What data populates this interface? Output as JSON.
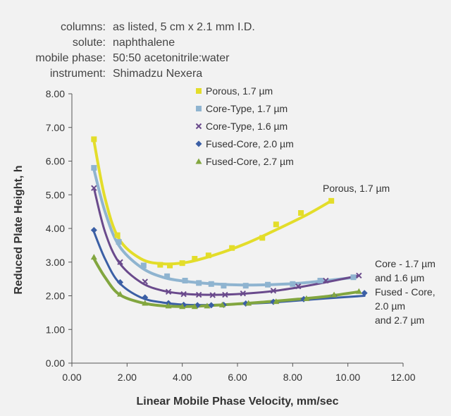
{
  "info": [
    {
      "label": "columns:",
      "value": "as listed, 5 cm x 2.1 mm I.D."
    },
    {
      "label": "solute:",
      "value": "naphthalene"
    },
    {
      "label": "mobile phase:",
      "value": "50:50 acetonitrile:water"
    },
    {
      "label": "instrument:",
      "value": "Shimadzu Nexera"
    }
  ],
  "chart_data": {
    "type": "scatter",
    "xlabel": "Linear Mobile Phase Velocity, mm/sec",
    "ylabel": "Reduced Plate Height, h",
    "xlim": [
      0,
      12
    ],
    "ylim": [
      0,
      8
    ],
    "xticks": [
      "0.00",
      "2.00",
      "4.00",
      "6.00",
      "8.00",
      "10.00",
      "12.00"
    ],
    "yticks": [
      "0.00",
      "1.00",
      "2.00",
      "3.00",
      "4.00",
      "5.00",
      "6.00",
      "7.00",
      "8.00"
    ],
    "grid": false,
    "legend_position": "top-right",
    "series": [
      {
        "name": "Porous, 1.7 µm",
        "color": "#e3dd2a",
        "marker": "square",
        "points": [
          [
            0.8,
            6.65
          ],
          [
            1.65,
            3.8
          ],
          [
            3.2,
            2.92
          ],
          [
            3.55,
            2.9
          ],
          [
            4.0,
            2.97
          ],
          [
            4.45,
            3.1
          ],
          [
            4.95,
            3.2
          ],
          [
            5.8,
            3.42
          ],
          [
            6.9,
            3.72
          ],
          [
            8.3,
            4.46
          ],
          [
            7.4,
            4.12
          ],
          [
            9.4,
            4.82
          ]
        ],
        "curve": [
          [
            0.8,
            6.6
          ],
          [
            1.2,
            4.9
          ],
          [
            1.7,
            3.7
          ],
          [
            2.5,
            3.1
          ],
          [
            3.3,
            2.95
          ],
          [
            4.2,
            3.0
          ],
          [
            5.2,
            3.22
          ],
          [
            6.3,
            3.55
          ],
          [
            7.5,
            4.0
          ],
          [
            8.5,
            4.4
          ],
          [
            9.4,
            4.82
          ]
        ]
      },
      {
        "name": "Core-Type, 1.7 µm",
        "color": "#8fb4d0",
        "marker": "square",
        "points": [
          [
            0.8,
            5.8
          ],
          [
            1.7,
            3.6
          ],
          [
            2.6,
            2.9
          ],
          [
            3.45,
            2.58
          ],
          [
            4.1,
            2.45
          ],
          [
            4.6,
            2.38
          ],
          [
            5.05,
            2.35
          ],
          [
            5.5,
            2.3
          ],
          [
            6.3,
            2.3
          ],
          [
            7.1,
            2.33
          ],
          [
            8.0,
            2.35
          ],
          [
            9.0,
            2.45
          ],
          [
            10.2,
            2.55
          ]
        ],
        "curve": [
          [
            0.8,
            5.75
          ],
          [
            1.2,
            4.5
          ],
          [
            1.7,
            3.5
          ],
          [
            2.5,
            2.85
          ],
          [
            3.3,
            2.55
          ],
          [
            4.2,
            2.42
          ],
          [
            5.2,
            2.35
          ],
          [
            6.2,
            2.32
          ],
          [
            7.2,
            2.33
          ],
          [
            8.2,
            2.37
          ],
          [
            9.2,
            2.45
          ],
          [
            10.3,
            2.55
          ]
        ]
      },
      {
        "name": "Core-Type, 1.6 µm",
        "color": "#6a4a8c",
        "marker": "x",
        "points": [
          [
            0.8,
            5.2
          ],
          [
            1.75,
            3.0
          ],
          [
            2.65,
            2.42
          ],
          [
            3.5,
            2.12
          ],
          [
            4.05,
            2.05
          ],
          [
            4.6,
            2.03
          ],
          [
            5.1,
            2.02
          ],
          [
            5.55,
            2.03
          ],
          [
            6.2,
            2.07
          ],
          [
            7.3,
            2.15
          ],
          [
            8.2,
            2.28
          ],
          [
            9.2,
            2.45
          ],
          [
            10.4,
            2.6
          ]
        ],
        "curve": [
          [
            0.8,
            5.2
          ],
          [
            1.2,
            3.9
          ],
          [
            1.7,
            3.0
          ],
          [
            2.5,
            2.4
          ],
          [
            3.3,
            2.15
          ],
          [
            4.2,
            2.05
          ],
          [
            5.2,
            2.03
          ],
          [
            6.2,
            2.06
          ],
          [
            7.2,
            2.13
          ],
          [
            8.2,
            2.25
          ],
          [
            9.2,
            2.4
          ],
          [
            10.4,
            2.6
          ]
        ]
      },
      {
        "name": "Fused-Core, 2.0 µm",
        "color": "#3b5fa5",
        "marker": "diamond",
        "points": [
          [
            0.8,
            3.95
          ],
          [
            1.75,
            2.4
          ],
          [
            2.65,
            1.95
          ],
          [
            3.5,
            1.78
          ],
          [
            4.05,
            1.73
          ],
          [
            4.55,
            1.72
          ],
          [
            5.05,
            1.72
          ],
          [
            5.5,
            1.73
          ],
          [
            6.3,
            1.77
          ],
          [
            7.3,
            1.82
          ],
          [
            8.4,
            1.9
          ],
          [
            9.5,
            2.0
          ],
          [
            10.6,
            2.08
          ]
        ],
        "curve": [
          [
            0.8,
            3.9
          ],
          [
            1.2,
            3.1
          ],
          [
            1.7,
            2.4
          ],
          [
            2.5,
            1.95
          ],
          [
            3.3,
            1.8
          ],
          [
            4.2,
            1.73
          ],
          [
            5.2,
            1.73
          ],
          [
            6.2,
            1.76
          ],
          [
            7.2,
            1.8
          ],
          [
            8.2,
            1.86
          ],
          [
            9.2,
            1.92
          ],
          [
            10.6,
            2.0
          ]
        ]
      },
      {
        "name": "Fused-Core, 2.7 µm",
        "color": "#82a63f",
        "marker": "triangle",
        "points": [
          [
            0.8,
            3.15
          ],
          [
            1.75,
            2.05
          ],
          [
            2.65,
            1.78
          ],
          [
            3.5,
            1.7
          ],
          [
            4.0,
            1.68
          ],
          [
            4.45,
            1.68
          ],
          [
            4.9,
            1.7
          ],
          [
            5.45,
            1.73
          ],
          [
            6.4,
            1.78
          ],
          [
            7.4,
            1.83
          ],
          [
            8.5,
            1.92
          ],
          [
            9.5,
            2.03
          ],
          [
            10.4,
            2.13
          ]
        ],
        "curve": [
          [
            0.8,
            3.1
          ],
          [
            1.2,
            2.55
          ],
          [
            1.7,
            2.05
          ],
          [
            2.5,
            1.8
          ],
          [
            3.3,
            1.7
          ],
          [
            4.2,
            1.68
          ],
          [
            5.2,
            1.72
          ],
          [
            6.2,
            1.77
          ],
          [
            7.2,
            1.83
          ],
          [
            8.2,
            1.9
          ],
          [
            9.2,
            1.98
          ],
          [
            10.4,
            2.12
          ]
        ]
      }
    ],
    "annotations": [
      {
        "id": "porous",
        "lines": [
          "Porous, 1.7 µm"
        ]
      },
      {
        "id": "core",
        "lines": [
          "Core - 1.7 µm",
          "and 1.6 µm"
        ]
      },
      {
        "id": "fused",
        "lines": [
          "Fused - Core,",
          "2.0 µm",
          "and 2.7 µm"
        ]
      }
    ]
  }
}
